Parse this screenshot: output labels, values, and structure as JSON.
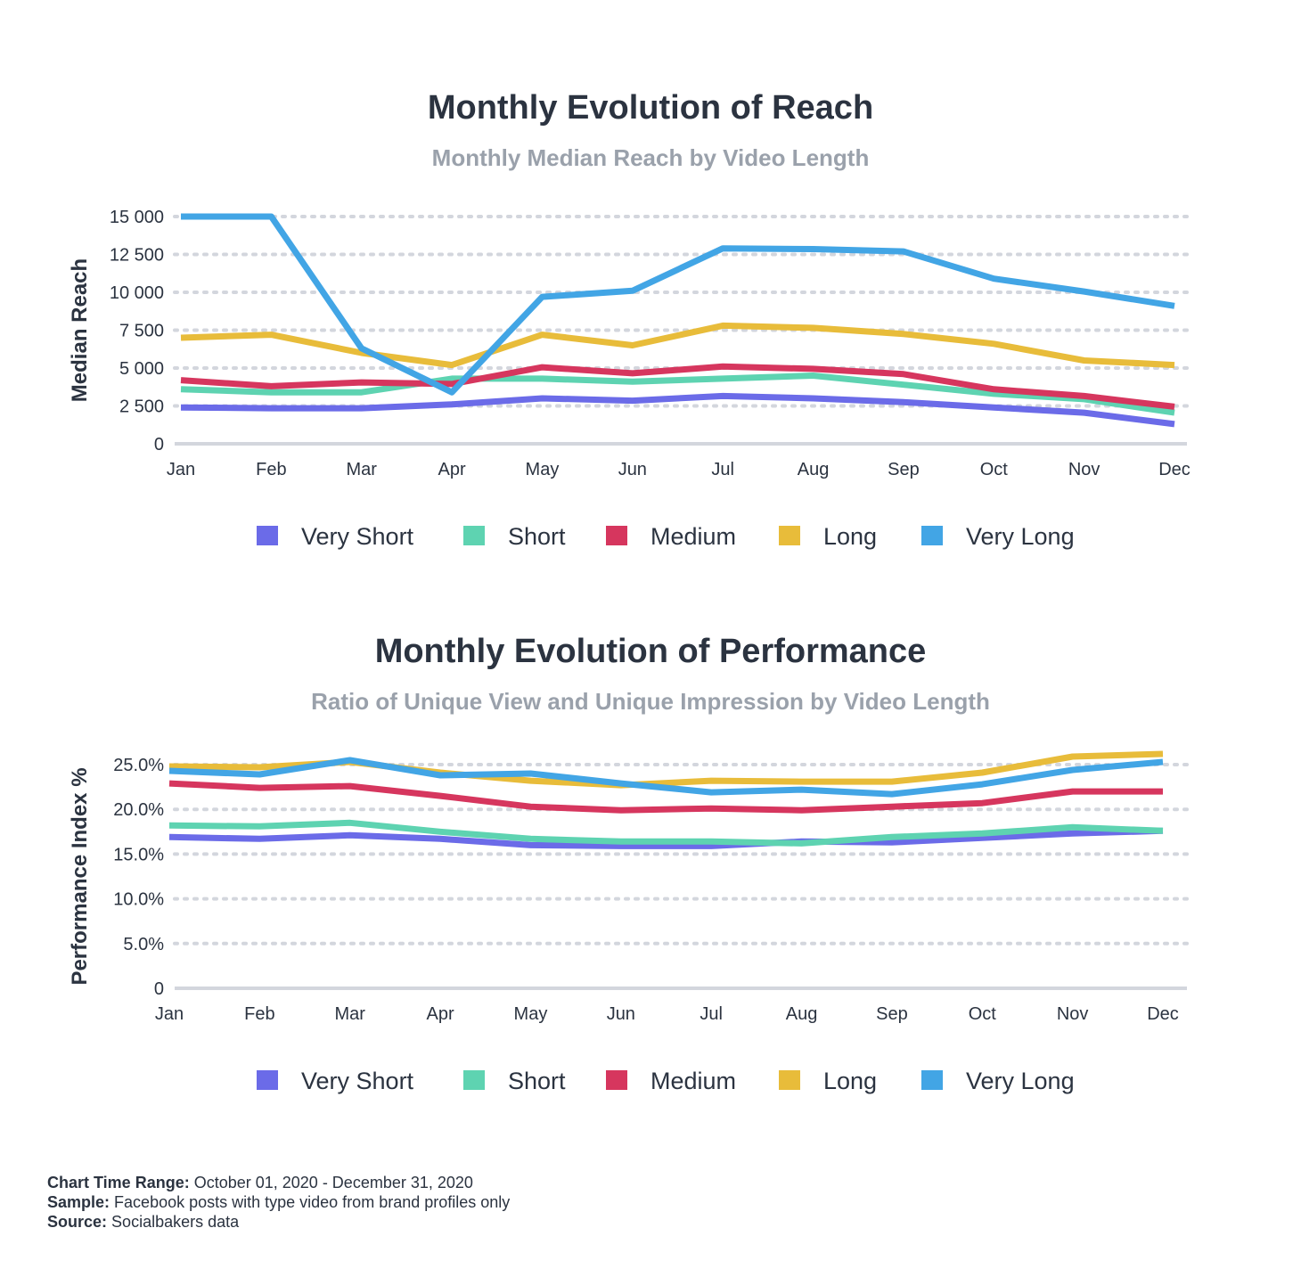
{
  "footer": {
    "time_range_label": "Chart Time Range:",
    "time_range_value": "October 01, 2020 - December 31, 2020",
    "sample_label": "Sample:",
    "sample_value": "Facebook posts with type video from brand profiles only",
    "source_label": "Source:",
    "source_value": "Socialbakers data"
  },
  "chart_data": [
    {
      "type": "line",
      "title": "Monthly Evolution of Reach",
      "subtitle": "Monthly Median Reach by Video Length",
      "xlabel": "",
      "ylabel": "Median Reach",
      "ylim": [
        0,
        15000
      ],
      "yticks": [
        0,
        2500,
        5000,
        7500,
        10000,
        12500,
        15000
      ],
      "ytick_labels": [
        "0",
        "2 500",
        "5 000",
        "7 500",
        "10 000",
        "12 500",
        "15 000"
      ],
      "grid": true,
      "legend_position": "bottom",
      "categories": [
        "Jan",
        "Feb",
        "Mar",
        "Apr",
        "May",
        "Jun",
        "Jul",
        "Aug",
        "Sep",
        "Oct",
        "Nov",
        "Dec"
      ],
      "series": [
        {
          "name": "Very Short",
          "color": "#6b6be8",
          "values": [
            2400,
            2350,
            2350,
            2600,
            3000,
            2850,
            3150,
            3000,
            2750,
            2400,
            2050,
            1300
          ]
        },
        {
          "name": "Short",
          "color": "#5ed3b1",
          "values": [
            3600,
            3400,
            3400,
            4300,
            4300,
            4100,
            4300,
            4500,
            3900,
            3300,
            2950,
            2050
          ]
        },
        {
          "name": "Medium",
          "color": "#d6365e",
          "values": [
            4200,
            3800,
            4050,
            3950,
            5050,
            4650,
            5100,
            4950,
            4600,
            3600,
            3150,
            2450
          ]
        },
        {
          "name": "Long",
          "color": "#e8bc3a",
          "values": [
            7000,
            7200,
            6000,
            5200,
            7200,
            6500,
            7800,
            7650,
            7250,
            6600,
            5500,
            5200
          ]
        },
        {
          "name": "Very Long",
          "color": "#42a5e5",
          "values": [
            15000,
            15000,
            6300,
            3400,
            9700,
            10100,
            12900,
            12850,
            12700,
            10900,
            10050,
            9100
          ]
        }
      ]
    },
    {
      "type": "line",
      "title": "Monthly Evolution of Performance",
      "subtitle": "Ratio of Unique View and Unique Impression by Video Length",
      "xlabel": "",
      "ylabel": "Performance Index %",
      "ylim": [
        0,
        25
      ],
      "yticks": [
        0,
        5,
        10,
        15,
        20,
        25
      ],
      "ytick_labels": [
        "0",
        "5.0%",
        "10.0%",
        "15.0%",
        "20.0%",
        "25.0%"
      ],
      "grid": true,
      "legend_position": "bottom",
      "categories": [
        "Jan",
        "Feb",
        "Mar",
        "Apr",
        "May",
        "Jun",
        "Jul",
        "Aug",
        "Sep",
        "Oct",
        "Nov",
        "Dec"
      ],
      "series": [
        {
          "name": "Very Short",
          "color": "#6b6be8",
          "values": [
            16.9,
            16.7,
            17.1,
            16.7,
            16.0,
            15.9,
            15.9,
            16.4,
            16.3,
            16.8,
            17.3,
            17.6
          ]
        },
        {
          "name": "Short",
          "color": "#5ed3b1",
          "values": [
            18.2,
            18.1,
            18.5,
            17.5,
            16.7,
            16.4,
            16.4,
            16.2,
            16.9,
            17.3,
            18.0,
            17.6
          ]
        },
        {
          "name": "Medium",
          "color": "#d6365e",
          "values": [
            22.9,
            22.4,
            22.6,
            21.5,
            20.3,
            19.9,
            20.1,
            19.9,
            20.3,
            20.7,
            22.0,
            22.0
          ]
        },
        {
          "name": "Long",
          "color": "#e8bc3a",
          "values": [
            24.8,
            24.7,
            25.3,
            24.1,
            23.2,
            22.7,
            23.2,
            23.1,
            23.1,
            24.1,
            25.9,
            26.2
          ]
        },
        {
          "name": "Very Long",
          "color": "#42a5e5",
          "values": [
            24.3,
            23.9,
            25.5,
            23.8,
            24.0,
            22.9,
            21.9,
            22.2,
            21.7,
            22.8,
            24.4,
            25.3
          ]
        }
      ]
    }
  ]
}
